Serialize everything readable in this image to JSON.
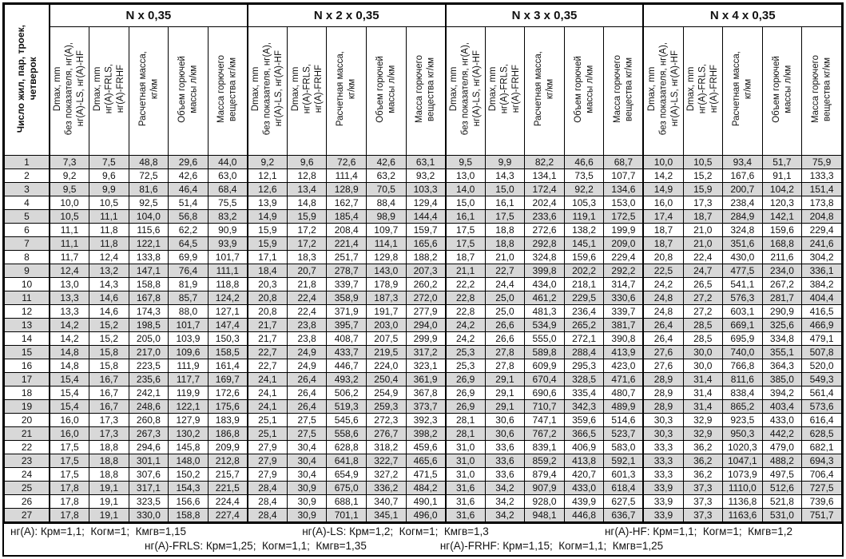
{
  "table": {
    "corner_header": "Число жил, пар, троек,\nчетверок",
    "groups": [
      {
        "title": "N x 0,35"
      },
      {
        "title": "N x 2 x 0,35"
      },
      {
        "title": "N x 3 x 0,35"
      },
      {
        "title": "N x 4 x 0,35"
      }
    ],
    "sub_headers": [
      "Dmax, mm\nбез показателя, нг(А),\nнг(А)-LS, нг(А)-HF",
      "Dmax, mm\nнг(А)-FRLS,\nнг(А)-FRHF",
      "Расчетная масса,\nкг/км",
      "Объем горючей\nмассы л/км",
      "Масса горючего\nвещества кг/км"
    ],
    "rows": [
      [
        "1",
        "7,3",
        "7,5",
        "48,8",
        "29,6",
        "44,0",
        "9,2",
        "9,6",
        "72,6",
        "42,6",
        "63,1",
        "9,5",
        "9,9",
        "82,2",
        "46,6",
        "68,7",
        "10,0",
        "10,5",
        "93,4",
        "51,7",
        "75,9"
      ],
      [
        "2",
        "9,2",
        "9,6",
        "72,5",
        "42,6",
        "63,0",
        "12,1",
        "12,8",
        "111,4",
        "63,2",
        "93,2",
        "13,0",
        "14,3",
        "134,1",
        "73,5",
        "107,7",
        "14,2",
        "15,2",
        "167,6",
        "91,1",
        "133,3"
      ],
      [
        "3",
        "9,5",
        "9,9",
        "81,6",
        "46,4",
        "68,4",
        "12,6",
        "13,4",
        "128,9",
        "70,5",
        "103,3",
        "14,0",
        "15,0",
        "172,4",
        "92,2",
        "134,6",
        "14,9",
        "15,9",
        "200,7",
        "104,2",
        "151,4"
      ],
      [
        "4",
        "10,0",
        "10,5",
        "92,5",
        "51,4",
        "75,5",
        "13,9",
        "14,8",
        "162,7",
        "88,4",
        "129,4",
        "15,0",
        "16,1",
        "202,4",
        "105,3",
        "153,0",
        "16,0",
        "17,3",
        "238,4",
        "120,3",
        "173,8"
      ],
      [
        "5",
        "10,5",
        "11,1",
        "104,0",
        "56,8",
        "83,2",
        "14,9",
        "15,9",
        "185,4",
        "98,9",
        "144,4",
        "16,1",
        "17,5",
        "233,6",
        "119,1",
        "172,5",
        "17,4",
        "18,7",
        "284,9",
        "142,1",
        "204,8"
      ],
      [
        "6",
        "11,1",
        "11,8",
        "115,6",
        "62,2",
        "90,9",
        "15,9",
        "17,2",
        "208,4",
        "109,7",
        "159,7",
        "17,5",
        "18,8",
        "272,6",
        "138,2",
        "199,9",
        "18,7",
        "21,0",
        "324,8",
        "159,6",
        "229,4"
      ],
      [
        "7",
        "11,1",
        "11,8",
        "122,1",
        "64,5",
        "93,9",
        "15,9",
        "17,2",
        "221,4",
        "114,1",
        "165,6",
        "17,5",
        "18,8",
        "292,8",
        "145,1",
        "209,0",
        "18,7",
        "21,0",
        "351,6",
        "168,8",
        "241,6"
      ],
      [
        "8",
        "11,7",
        "12,4",
        "133,8",
        "69,9",
        "101,7",
        "17,1",
        "18,3",
        "251,7",
        "129,8",
        "188,2",
        "18,7",
        "21,0",
        "324,8",
        "159,6",
        "229,4",
        "20,8",
        "22,4",
        "430,0",
        "211,6",
        "304,2"
      ],
      [
        "9",
        "12,4",
        "13,2",
        "147,1",
        "76,4",
        "111,1",
        "18,4",
        "20,7",
        "278,7",
        "143,0",
        "207,3",
        "21,1",
        "22,7",
        "399,8",
        "202,2",
        "292,2",
        "22,5",
        "24,7",
        "477,5",
        "234,0",
        "336,1"
      ],
      [
        "10",
        "13,0",
        "14,3",
        "158,8",
        "81,9",
        "118,8",
        "20,3",
        "21,8",
        "339,7",
        "178,9",
        "260,2",
        "22,2",
        "24,4",
        "434,0",
        "218,1",
        "314,7",
        "24,2",
        "26,5",
        "541,1",
        "267,2",
        "384,2"
      ],
      [
        "11",
        "13,3",
        "14,6",
        "167,8",
        "85,7",
        "124,2",
        "20,8",
        "22,4",
        "358,9",
        "187,3",
        "272,0",
        "22,8",
        "25,0",
        "461,2",
        "229,5",
        "330,6",
        "24,8",
        "27,2",
        "576,3",
        "281,7",
        "404,4"
      ],
      [
        "12",
        "13,3",
        "14,6",
        "174,3",
        "88,0",
        "127,1",
        "20,8",
        "22,4",
        "371,9",
        "191,7",
        "277,9",
        "22,8",
        "25,0",
        "481,3",
        "236,4",
        "339,7",
        "24,8",
        "27,2",
        "603,1",
        "290,9",
        "416,5"
      ],
      [
        "13",
        "14,2",
        "15,2",
        "198,5",
        "101,7",
        "147,4",
        "21,7",
        "23,8",
        "395,7",
        "203,0",
        "294,0",
        "24,2",
        "26,6",
        "534,9",
        "265,2",
        "381,7",
        "26,4",
        "28,5",
        "669,1",
        "325,6",
        "466,9"
      ],
      [
        "14",
        "14,2",
        "15,2",
        "205,0",
        "103,9",
        "150,3",
        "21,7",
        "23,8",
        "408,7",
        "207,5",
        "299,9",
        "24,2",
        "26,6",
        "555,0",
        "272,1",
        "390,8",
        "26,4",
        "28,5",
        "695,9",
        "334,8",
        "479,1"
      ],
      [
        "15",
        "14,8",
        "15,8",
        "217,0",
        "109,6",
        "158,5",
        "22,7",
        "24,9",
        "433,7",
        "219,5",
        "317,2",
        "25,3",
        "27,8",
        "589,8",
        "288,4",
        "413,9",
        "27,6",
        "30,0",
        "740,0",
        "355,1",
        "507,8"
      ],
      [
        "16",
        "14,8",
        "15,8",
        "223,5",
        "111,9",
        "161,4",
        "22,7",
        "24,9",
        "446,7",
        "224,0",
        "323,1",
        "25,3",
        "27,8",
        "609,9",
        "295,3",
        "423,0",
        "27,6",
        "30,0",
        "766,8",
        "364,3",
        "520,0"
      ],
      [
        "17",
        "15,4",
        "16,7",
        "235,6",
        "117,7",
        "169,7",
        "24,1",
        "26,4",
        "493,2",
        "250,4",
        "361,9",
        "26,9",
        "29,1",
        "670,4",
        "328,5",
        "471,6",
        "28,9",
        "31,4",
        "811,6",
        "385,0",
        "549,3"
      ],
      [
        "18",
        "15,4",
        "16,7",
        "242,1",
        "119,9",
        "172,6",
        "24,1",
        "26,4",
        "506,2",
        "254,9",
        "367,8",
        "26,9",
        "29,1",
        "690,6",
        "335,4",
        "480,7",
        "28,9",
        "31,4",
        "838,4",
        "394,2",
        "561,4"
      ],
      [
        "19",
        "15,4",
        "16,7",
        "248,6",
        "122,1",
        "175,6",
        "24,1",
        "26,4",
        "519,3",
        "259,3",
        "373,7",
        "26,9",
        "29,1",
        "710,7",
        "342,3",
        "489,9",
        "28,9",
        "31,4",
        "865,2",
        "403,4",
        "573,6"
      ],
      [
        "20",
        "16,0",
        "17,3",
        "260,8",
        "127,9",
        "183,9",
        "25,1",
        "27,5",
        "545,6",
        "272,3",
        "392,3",
        "28,1",
        "30,6",
        "747,1",
        "359,6",
        "514,6",
        "30,3",
        "32,9",
        "923,5",
        "433,0",
        "616,4"
      ],
      [
        "21",
        "16,0",
        "17,3",
        "267,3",
        "130,2",
        "186,8",
        "25,1",
        "27,5",
        "558,6",
        "276,7",
        "398,2",
        "28,1",
        "30,6",
        "767,2",
        "366,5",
        "523,7",
        "30,3",
        "32,9",
        "950,3",
        "442,2",
        "628,5"
      ],
      [
        "22",
        "17,5",
        "18,8",
        "294,6",
        "145,8",
        "209,9",
        "27,9",
        "30,4",
        "628,8",
        "318,2",
        "459,6",
        "31,0",
        "33,6",
        "839,1",
        "406,9",
        "583,0",
        "33,3",
        "36,2",
        "1020,3",
        "479,0",
        "682,1"
      ],
      [
        "23",
        "17,5",
        "18,8",
        "301,1",
        "148,0",
        "212,8",
        "27,9",
        "30,4",
        "641,8",
        "322,7",
        "465,6",
        "31,0",
        "33,6",
        "859,2",
        "413,8",
        "592,1",
        "33,3",
        "36,2",
        "1047,1",
        "488,2",
        "694,3"
      ],
      [
        "24",
        "17,5",
        "18,8",
        "307,6",
        "150,2",
        "215,7",
        "27,9",
        "30,4",
        "654,9",
        "327,2",
        "471,5",
        "31,0",
        "33,6",
        "879,4",
        "420,7",
        "601,3",
        "33,3",
        "36,2",
        "1073,9",
        "497,5",
        "706,4"
      ],
      [
        "25",
        "17,8",
        "19,1",
        "317,1",
        "154,3",
        "221,5",
        "28,4",
        "30,9",
        "675,0",
        "336,2",
        "484,2",
        "31,6",
        "34,2",
        "907,9",
        "433,0",
        "618,4",
        "33,9",
        "37,3",
        "1110,0",
        "512,6",
        "727,5"
      ],
      [
        "26",
        "17,8",
        "19,1",
        "323,5",
        "156,6",
        "224,4",
        "28,4",
        "30,9",
        "688,1",
        "340,7",
        "490,1",
        "31,6",
        "34,2",
        "928,0",
        "439,9",
        "627,5",
        "33,9",
        "37,3",
        "1136,8",
        "521,8",
        "739,6"
      ],
      [
        "27",
        "17,8",
        "19,1",
        "330,0",
        "158,8",
        "227,4",
        "28,4",
        "30,9",
        "701,1",
        "345,1",
        "496,0",
        "31,6",
        "34,2",
        "948,1",
        "446,8",
        "636,7",
        "33,9",
        "37,3",
        "1163,6",
        "531,0",
        "751,7"
      ]
    ]
  },
  "footer": {
    "line1": [
      "нг(А): Крм=1,1;  Когм=1;  Кмгв=1,15",
      "нг(А)-LS: Крм=1,2;  Когм=1;  Кмгв=1,3",
      "нг(А)-HF: Крм=1,1;  Когм=1;  Кмгв=1,2"
    ],
    "line2": [
      "нг(А)-FRLS: Крм=1,25;  Когм=1,1;  Кмгв=1,35",
      "нг(А)-FRHF: Крм=1,15;  Когм=1,1;  Кмгв=1,25"
    ]
  },
  "colors": {
    "stripe": "#d8d8d8",
    "border": "#000000"
  }
}
